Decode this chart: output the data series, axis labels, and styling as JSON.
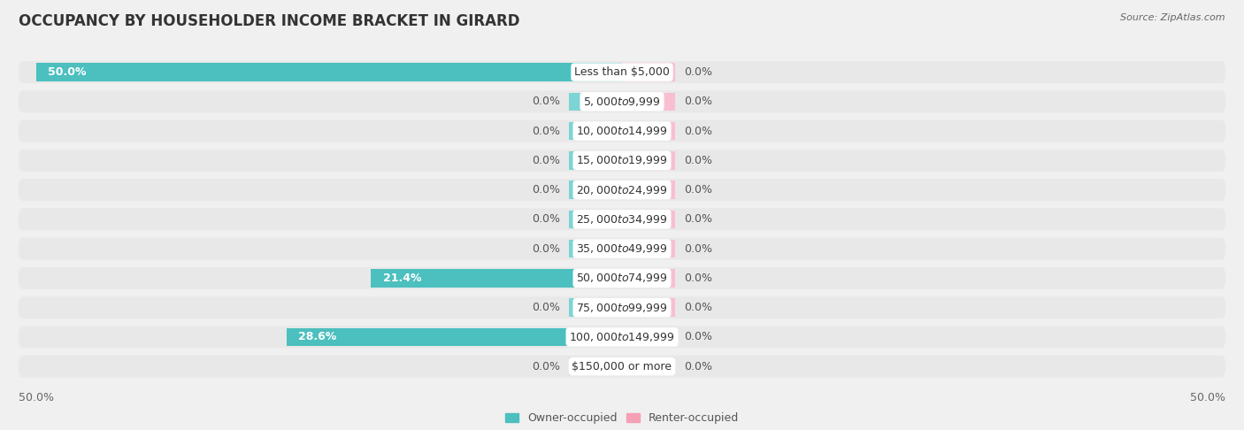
{
  "title": "OCCUPANCY BY HOUSEHOLDER INCOME BRACKET IN GIRARD",
  "source": "Source: ZipAtlas.com",
  "categories": [
    "Less than $5,000",
    "$5,000 to $9,999",
    "$10,000 to $14,999",
    "$15,000 to $19,999",
    "$20,000 to $24,999",
    "$25,000 to $34,999",
    "$35,000 to $49,999",
    "$50,000 to $74,999",
    "$75,000 to $99,999",
    "$100,000 to $149,999",
    "$150,000 or more"
  ],
  "owner_values": [
    50.0,
    0.0,
    0.0,
    0.0,
    0.0,
    0.0,
    0.0,
    21.4,
    0.0,
    28.6,
    0.0
  ],
  "renter_values": [
    0.0,
    0.0,
    0.0,
    0.0,
    0.0,
    0.0,
    0.0,
    0.0,
    0.0,
    0.0,
    0.0
  ],
  "owner_color": "#4CBFBF",
  "renter_color": "#F4A0B5",
  "owner_stub_color": "#7DD4D4",
  "renter_stub_color": "#F9BFD0",
  "bar_height": 0.62,
  "stub_size": 4.5,
  "xlim": 50.0,
  "background_color": "#f0f0f0",
  "row_bg_color": "#e8e8e8",
  "row_white_color": "#f8f8f8",
  "title_fontsize": 12,
  "label_fontsize": 9,
  "category_fontsize": 9,
  "legend_fontsize": 9,
  "source_fontsize": 8,
  "axis_label_fontsize": 9
}
